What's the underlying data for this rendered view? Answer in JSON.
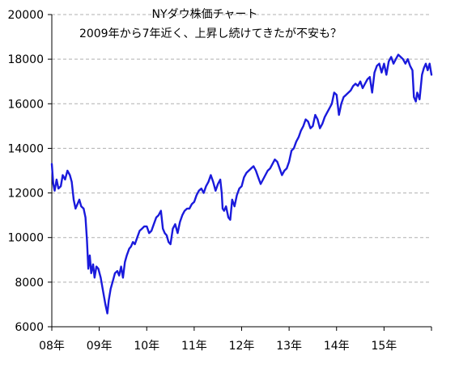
{
  "chart_data": {
    "type": "line",
    "title": "NYダウ株価チャート",
    "subtitle": "2009年から7年近く、上昇し続けてきたが不安も？",
    "xlabel": "",
    "ylabel": "",
    "ylim": [
      6000,
      20000
    ],
    "yticks": [
      6000,
      8000,
      10000,
      12000,
      14000,
      16000,
      18000,
      20000
    ],
    "xlim": [
      2008.0,
      2016.0
    ],
    "xticks": [
      {
        "x": 2008.0,
        "label": "08年"
      },
      {
        "x": 2009.0,
        "label": "09年"
      },
      {
        "x": 2010.0,
        "label": "10年"
      },
      {
        "x": 2011.0,
        "label": "11年"
      },
      {
        "x": 2012.0,
        "label": "12年"
      },
      {
        "x": 2013.0,
        "label": "13年"
      },
      {
        "x": 2014.0,
        "label": "14年"
      },
      {
        "x": 2015.0,
        "label": "15年"
      }
    ],
    "grid": {
      "y": true,
      "x": false
    },
    "series": [
      {
        "color": "#1a1adc",
        "points": [
          [
            2008.0,
            13300
          ],
          [
            2008.03,
            12400
          ],
          [
            2008.06,
            12100
          ],
          [
            2008.1,
            12600
          ],
          [
            2008.14,
            12200
          ],
          [
            2008.19,
            12300
          ],
          [
            2008.23,
            12800
          ],
          [
            2008.28,
            12600
          ],
          [
            2008.33,
            13000
          ],
          [
            2008.38,
            12800
          ],
          [
            2008.42,
            12500
          ],
          [
            2008.46,
            11700
          ],
          [
            2008.5,
            11300
          ],
          [
            2008.54,
            11500
          ],
          [
            2008.58,
            11700
          ],
          [
            2008.62,
            11400
          ],
          [
            2008.67,
            11300
          ],
          [
            2008.71,
            10900
          ],
          [
            2008.74,
            9900
          ],
          [
            2008.77,
            8600
          ],
          [
            2008.8,
            9200
          ],
          [
            2008.83,
            8400
          ],
          [
            2008.87,
            8800
          ],
          [
            2008.9,
            8200
          ],
          [
            2008.94,
            8700
          ],
          [
            2008.98,
            8600
          ],
          [
            2009.03,
            8200
          ],
          [
            2009.08,
            7600
          ],
          [
            2009.13,
            7000
          ],
          [
            2009.17,
            6600
          ],
          [
            2009.2,
            7200
          ],
          [
            2009.24,
            7700
          ],
          [
            2009.28,
            8000
          ],
          [
            2009.33,
            8400
          ],
          [
            2009.38,
            8500
          ],
          [
            2009.42,
            8300
          ],
          [
            2009.46,
            8700
          ],
          [
            2009.5,
            8200
          ],
          [
            2009.54,
            8900
          ],
          [
            2009.58,
            9200
          ],
          [
            2009.63,
            9500
          ],
          [
            2009.67,
            9600
          ],
          [
            2009.71,
            9800
          ],
          [
            2009.75,
            9700
          ],
          [
            2009.8,
            10000
          ],
          [
            2009.85,
            10300
          ],
          [
            2009.9,
            10400
          ],
          [
            2009.95,
            10500
          ],
          [
            2010.0,
            10500
          ],
          [
            2010.05,
            10200
          ],
          [
            2010.1,
            10300
          ],
          [
            2010.15,
            10600
          ],
          [
            2010.2,
            10900
          ],
          [
            2010.25,
            11000
          ],
          [
            2010.3,
            11200
          ],
          [
            2010.34,
            10400
          ],
          [
            2010.38,
            10200
          ],
          [
            2010.42,
            10100
          ],
          [
            2010.46,
            9800
          ],
          [
            2010.5,
            9700
          ],
          [
            2010.55,
            10400
          ],
          [
            2010.6,
            10600
          ],
          [
            2010.65,
            10200
          ],
          [
            2010.7,
            10700
          ],
          [
            2010.75,
            11000
          ],
          [
            2010.8,
            11200
          ],
          [
            2010.85,
            11300
          ],
          [
            2010.9,
            11300
          ],
          [
            2010.95,
            11500
          ],
          [
            2011.0,
            11600
          ],
          [
            2011.05,
            11900
          ],
          [
            2011.1,
            12100
          ],
          [
            2011.15,
            12200
          ],
          [
            2011.2,
            12000
          ],
          [
            2011.25,
            12300
          ],
          [
            2011.3,
            12500
          ],
          [
            2011.35,
            12800
          ],
          [
            2011.4,
            12500
          ],
          [
            2011.45,
            12100
          ],
          [
            2011.5,
            12400
          ],
          [
            2011.55,
            12600
          ],
          [
            2011.58,
            12000
          ],
          [
            2011.6,
            11300
          ],
          [
            2011.63,
            11200
          ],
          [
            2011.67,
            11400
          ],
          [
            2011.72,
            10900
          ],
          [
            2011.76,
            10800
          ],
          [
            2011.8,
            11700
          ],
          [
            2011.85,
            11400
          ],
          [
            2011.9,
            11900
          ],
          [
            2011.95,
            12200
          ],
          [
            2012.0,
            12300
          ],
          [
            2012.05,
            12700
          ],
          [
            2012.1,
            12900
          ],
          [
            2012.15,
            13000
          ],
          [
            2012.2,
            13100
          ],
          [
            2012.25,
            13200
          ],
          [
            2012.3,
            13000
          ],
          [
            2012.35,
            12700
          ],
          [
            2012.4,
            12400
          ],
          [
            2012.45,
            12600
          ],
          [
            2012.5,
            12800
          ],
          [
            2012.55,
            13000
          ],
          [
            2012.6,
            13100
          ],
          [
            2012.65,
            13300
          ],
          [
            2012.7,
            13500
          ],
          [
            2012.75,
            13400
          ],
          [
            2012.8,
            13100
          ],
          [
            2012.85,
            12800
          ],
          [
            2012.9,
            13000
          ],
          [
            2012.95,
            13100
          ],
          [
            2013.0,
            13400
          ],
          [
            2013.05,
            13900
          ],
          [
            2013.1,
            14000
          ],
          [
            2013.15,
            14300
          ],
          [
            2013.2,
            14500
          ],
          [
            2013.25,
            14800
          ],
          [
            2013.3,
            15000
          ],
          [
            2013.35,
            15300
          ],
          [
            2013.4,
            15200
          ],
          [
            2013.45,
            14900
          ],
          [
            2013.5,
            15000
          ],
          [
            2013.55,
            15500
          ],
          [
            2013.6,
            15300
          ],
          [
            2013.65,
            14900
          ],
          [
            2013.7,
            15100
          ],
          [
            2013.75,
            15400
          ],
          [
            2013.8,
            15600
          ],
          [
            2013.85,
            15800
          ],
          [
            2013.9,
            16000
          ],
          [
            2013.95,
            16500
          ],
          [
            2014.0,
            16400
          ],
          [
            2014.05,
            15500
          ],
          [
            2014.1,
            16000
          ],
          [
            2014.15,
            16300
          ],
          [
            2014.2,
            16400
          ],
          [
            2014.25,
            16500
          ],
          [
            2014.3,
            16600
          ],
          [
            2014.35,
            16800
          ],
          [
            2014.4,
            16900
          ],
          [
            2014.45,
            16800
          ],
          [
            2014.5,
            17000
          ],
          [
            2014.55,
            16700
          ],
          [
            2014.6,
            16900
          ],
          [
            2014.65,
            17100
          ],
          [
            2014.7,
            17200
          ],
          [
            2014.75,
            16500
          ],
          [
            2014.8,
            17400
          ],
          [
            2014.85,
            17700
          ],
          [
            2014.9,
            17800
          ],
          [
            2014.95,
            17400
          ],
          [
            2015.0,
            17800
          ],
          [
            2015.05,
            17300
          ],
          [
            2015.1,
            17900
          ],
          [
            2015.15,
            18100
          ],
          [
            2015.2,
            17800
          ],
          [
            2015.25,
            18000
          ],
          [
            2015.3,
            18200
          ],
          [
            2015.35,
            18100
          ],
          [
            2015.4,
            18000
          ],
          [
            2015.45,
            17800
          ],
          [
            2015.5,
            18000
          ],
          [
            2015.55,
            17700
          ],
          [
            2015.6,
            17500
          ],
          [
            2015.63,
            16300
          ],
          [
            2015.67,
            16100
          ],
          [
            2015.7,
            16500
          ],
          [
            2015.75,
            16200
          ],
          [
            2015.8,
            17300
          ],
          [
            2015.84,
            17600
          ],
          [
            2015.88,
            17800
          ],
          [
            2015.92,
            17500
          ],
          [
            2015.96,
            17800
          ],
          [
            2016.0,
            17300
          ]
        ]
      }
    ]
  }
}
